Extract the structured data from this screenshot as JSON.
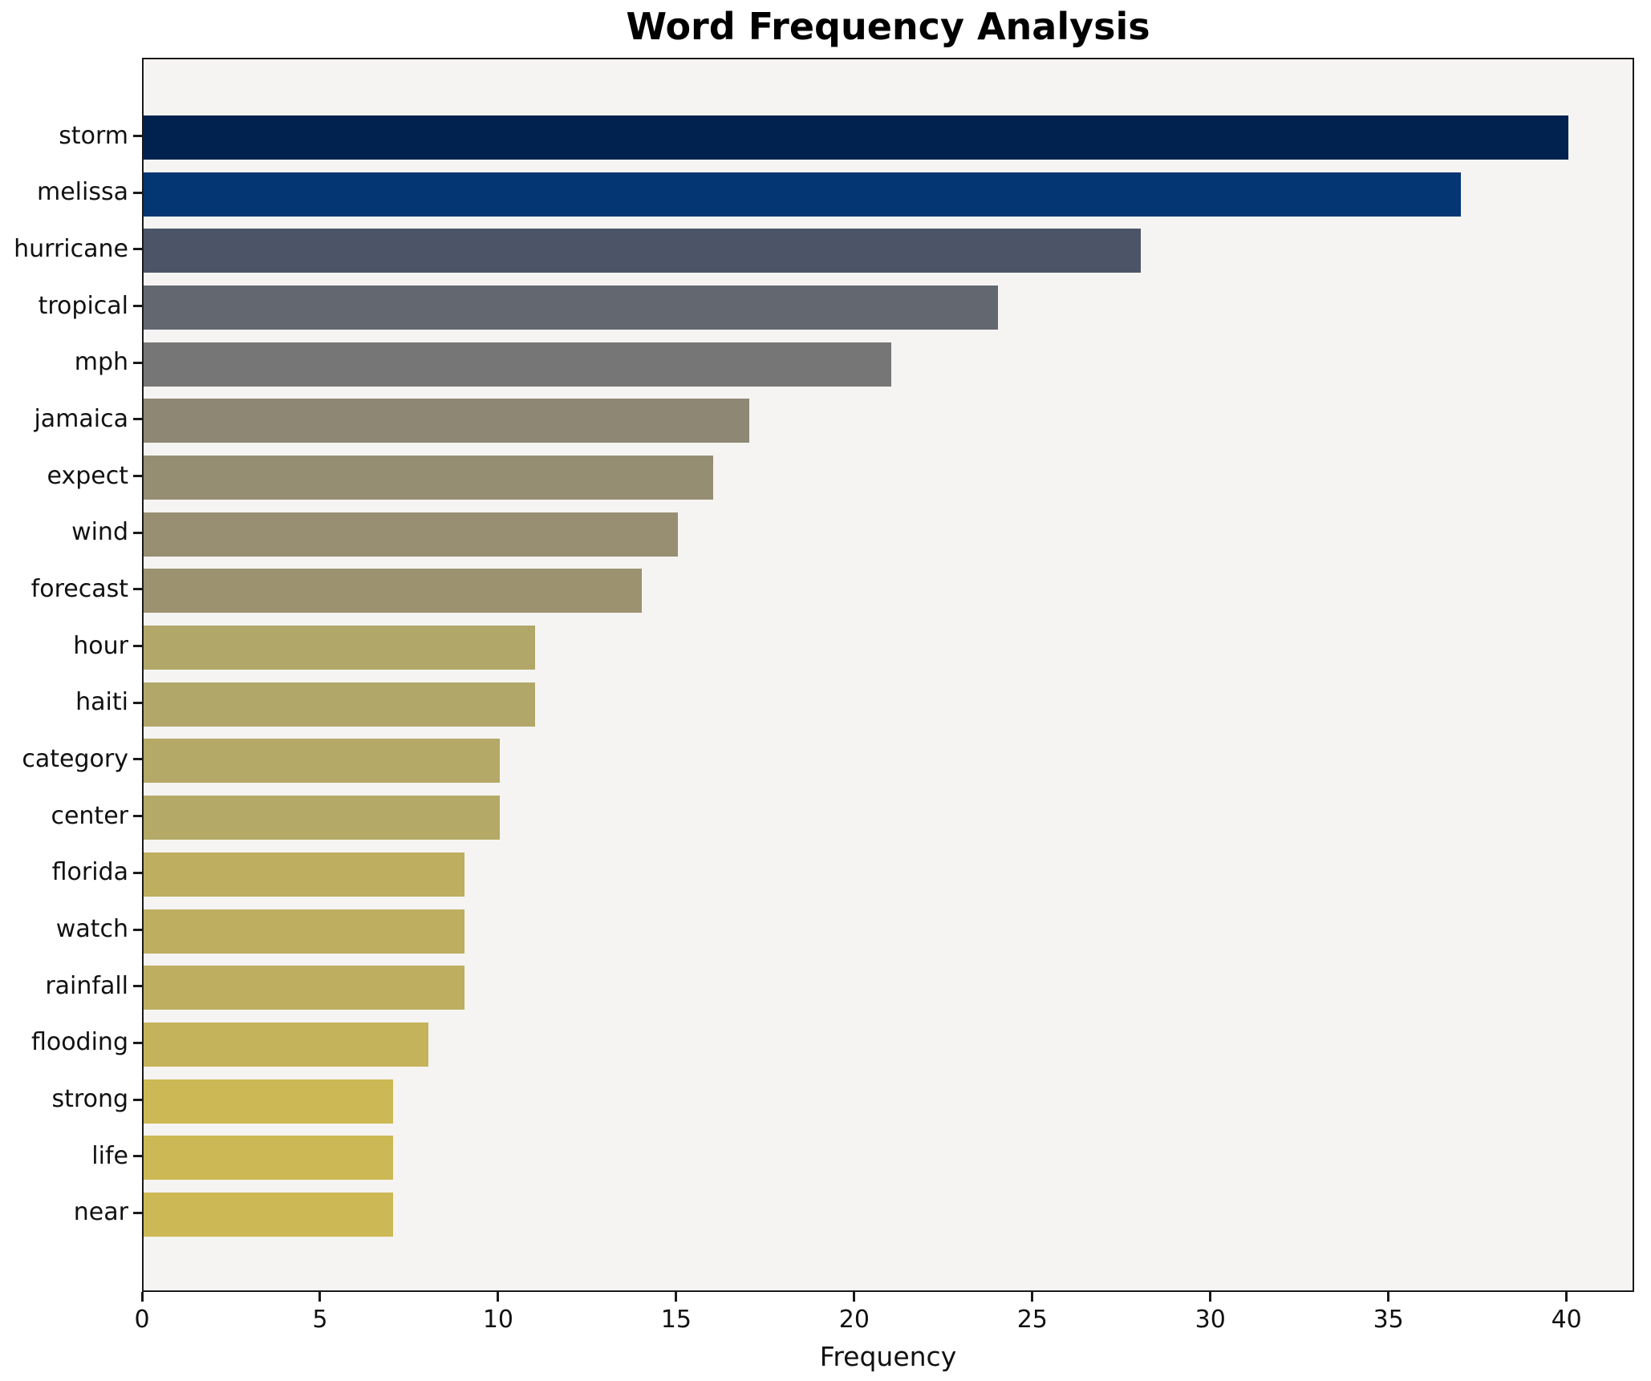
{
  "chart_data": {
    "type": "bar",
    "orientation": "horizontal",
    "title": "Word Frequency Analysis",
    "xlabel": "Frequency",
    "ylabel": "",
    "categories": [
      "storm",
      "melissa",
      "hurricane",
      "tropical",
      "mph",
      "jamaica",
      "expect",
      "wind",
      "forecast",
      "hour",
      "haiti",
      "category",
      "center",
      "florida",
      "watch",
      "rainfall",
      "flooding",
      "strong",
      "life",
      "near"
    ],
    "values": [
      40,
      37,
      28,
      24,
      21,
      17,
      16,
      15,
      14,
      11,
      11,
      10,
      10,
      9,
      9,
      9,
      8,
      7,
      7,
      7
    ],
    "bar_colors": [
      "#01224e",
      "#043673",
      "#4c5568",
      "#636770",
      "#767676",
      "#8d8774",
      "#958e73",
      "#988f72",
      "#9c9270",
      "#b1a769",
      "#b1a769",
      "#b4a966",
      "#b4a966",
      "#bdae60",
      "#bdae60",
      "#bdae60",
      "#c4b35b",
      "#ccb854",
      "#ccb854",
      "#ccb854"
    ],
    "x_ticks": [
      0,
      5,
      10,
      15,
      20,
      25,
      30,
      35,
      40
    ],
    "xlim": [
      0,
      41.9
    ],
    "grid": false,
    "legend": false,
    "plot_background": "#f5f4f2",
    "figure_background": "#ffffff",
    "spine_color": "#1a1a1a"
  }
}
